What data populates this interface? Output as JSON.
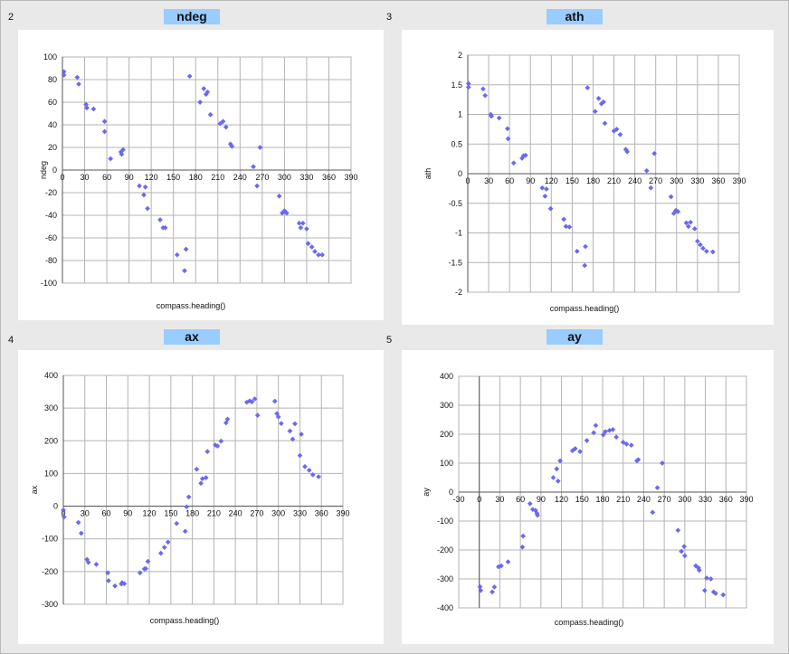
{
  "chart_data": [
    {
      "type": "scatter",
      "number": "2",
      "title": "ndeg",
      "xlabel": "compass.heading()",
      "ylabel": "ndeg",
      "xlim": [
        0,
        390
      ],
      "ylim": [
        -100,
        100
      ],
      "xticks": [
        "0",
        "30",
        "60",
        "90",
        "120",
        "150",
        "180",
        "210",
        "240",
        "270",
        "300",
        "330",
        "360",
        "390"
      ],
      "yticks": [
        "100",
        "80",
        "60",
        "40",
        "20",
        "0",
        "-20",
        "-40",
        "-60",
        "-80",
        "-100"
      ],
      "grid": true,
      "legend": "none",
      "color": "#6a6aee",
      "points": [
        [
          2,
          87
        ],
        [
          2,
          84
        ],
        [
          20,
          82
        ],
        [
          22,
          76
        ],
        [
          32,
          58
        ],
        [
          33,
          55
        ],
        [
          42,
          54
        ],
        [
          57,
          43
        ],
        [
          57,
          34
        ],
        [
          65,
          10
        ],
        [
          79,
          16
        ],
        [
          80,
          14
        ],
        [
          82,
          18
        ],
        [
          104,
          -14
        ],
        [
          110,
          -22
        ],
        [
          112,
          -15
        ],
        [
          115,
          -34
        ],
        [
          132,
          -44
        ],
        [
          136,
          -51
        ],
        [
          139,
          -51
        ],
        [
          155,
          -75
        ],
        [
          165,
          -89
        ],
        [
          167,
          -70
        ],
        [
          172,
          83
        ],
        [
          186,
          60
        ],
        [
          191,
          72
        ],
        [
          194,
          67
        ],
        [
          196,
          69
        ],
        [
          200,
          49
        ],
        [
          213,
          41
        ],
        [
          217,
          43
        ],
        [
          221,
          38
        ],
        [
          227,
          23
        ],
        [
          229,
          21
        ],
        [
          258,
          3
        ],
        [
          263,
          -14
        ],
        [
          267,
          20
        ],
        [
          293,
          -23
        ],
        [
          297,
          -38
        ],
        [
          300,
          -36
        ],
        [
          303,
          -38
        ],
        [
          320,
          -47
        ],
        [
          322,
          -51
        ],
        [
          325,
          -47
        ],
        [
          330,
          -52
        ],
        [
          332,
          -65
        ],
        [
          337,
          -68
        ],
        [
          341,
          -72
        ],
        [
          346,
          -75
        ],
        [
          351,
          -75
        ]
      ]
    },
    {
      "type": "scatter",
      "number": "3",
      "title": "ath",
      "xlabel": "compass.heading()",
      "ylabel": "ath",
      "xlim": [
        0,
        390
      ],
      "ylim": [
        -2,
        2
      ],
      "xticks": [
        "0",
        "30",
        "60",
        "90",
        "120",
        "150",
        "180",
        "210",
        "240",
        "270",
        "300",
        "330",
        "360",
        "390"
      ],
      "yticks": [
        "2",
        "1.5",
        "1",
        "0.5",
        "0",
        "-0.5",
        "-1",
        "-1.5",
        "-2"
      ],
      "grid": true,
      "legend": "none",
      "color": "#6a6aee",
      "points": [
        [
          1,
          1.52
        ],
        [
          1,
          1.46
        ],
        [
          22,
          1.43
        ],
        [
          25,
          1.32
        ],
        [
          33,
          1.0
        ],
        [
          34,
          0.97
        ],
        [
          45,
          0.94
        ],
        [
          57,
          0.76
        ],
        [
          58,
          0.59
        ],
        [
          66,
          0.18
        ],
        [
          78,
          0.26
        ],
        [
          80,
          0.3
        ],
        [
          83,
          0.31
        ],
        [
          107,
          -0.24
        ],
        [
          111,
          -0.38
        ],
        [
          113,
          -0.26
        ],
        [
          119,
          -0.59
        ],
        [
          138,
          -0.77
        ],
        [
          141,
          -0.89
        ],
        [
          146,
          -0.9
        ],
        [
          157,
          -1.31
        ],
        [
          168,
          -1.55
        ],
        [
          169,
          -1.23
        ],
        [
          172,
          1.45
        ],
        [
          183,
          1.05
        ],
        [
          188,
          1.27
        ],
        [
          192,
          1.18
        ],
        [
          195,
          1.21
        ],
        [
          197,
          0.85
        ],
        [
          210,
          0.72
        ],
        [
          214,
          0.75
        ],
        [
          219,
          0.66
        ],
        [
          227,
          0.41
        ],
        [
          229,
          0.37
        ],
        [
          257,
          0.05
        ],
        [
          263,
          -0.24
        ],
        [
          268,
          0.34
        ],
        [
          292,
          -0.39
        ],
        [
          296,
          -0.67
        ],
        [
          299,
          -0.62
        ],
        [
          302,
          -0.64
        ],
        [
          314,
          -0.83
        ],
        [
          317,
          -0.89
        ],
        [
          320,
          -0.82
        ],
        [
          326,
          -0.93
        ],
        [
          330,
          -1.14
        ],
        [
          334,
          -1.2
        ],
        [
          338,
          -1.26
        ],
        [
          343,
          -1.31
        ],
        [
          352,
          -1.32
        ]
      ]
    },
    {
      "type": "scatter",
      "number": "4",
      "title": "ax",
      "xlabel": "compass.heading()",
      "ylabel": "ax",
      "xlim": [
        0,
        390
      ],
      "ylim": [
        -300,
        400
      ],
      "xticks": [
        "0",
        "30",
        "60",
        "90",
        "120",
        "150",
        "180",
        "210",
        "240",
        "270",
        "300",
        "330",
        "360",
        "390"
      ],
      "yticks": [
        "400",
        "300",
        "200",
        "100",
        "0",
        "-100",
        "-200",
        "-300"
      ],
      "grid": true,
      "legend": "none",
      "color": "#6a6aee",
      "points": [
        [
          0,
          -12
        ],
        [
          1,
          -33
        ],
        [
          21,
          -50
        ],
        [
          25,
          -83
        ],
        [
          33,
          -163
        ],
        [
          35,
          -172
        ],
        [
          46,
          -178
        ],
        [
          62,
          -204
        ],
        [
          63,
          -228
        ],
        [
          72,
          -244
        ],
        [
          81,
          -238
        ],
        [
          82,
          -234
        ],
        [
          85,
          -237
        ],
        [
          107,
          -204
        ],
        [
          113,
          -192
        ],
        [
          115,
          -191
        ],
        [
          118,
          -169
        ],
        [
          136,
          -144
        ],
        [
          141,
          -126
        ],
        [
          146,
          -110
        ],
        [
          158,
          -53
        ],
        [
          170,
          -77
        ],
        [
          172,
          -2
        ],
        [
          175,
          28
        ],
        [
          186,
          113
        ],
        [
          192,
          70
        ],
        [
          194,
          84
        ],
        [
          199,
          87
        ],
        [
          201,
          167
        ],
        [
          212,
          187
        ],
        [
          215,
          184
        ],
        [
          220,
          199
        ],
        [
          227,
          255
        ],
        [
          229,
          266
        ],
        [
          256,
          318
        ],
        [
          260,
          322
        ],
        [
          263,
          319
        ],
        [
          267,
          328
        ],
        [
          271,
          278
        ],
        [
          295,
          321
        ],
        [
          298,
          283
        ],
        [
          300,
          273
        ],
        [
          304,
          253
        ],
        [
          316,
          230
        ],
        [
          320,
          205
        ],
        [
          323,
          252
        ],
        [
          330,
          155
        ],
        [
          332,
          220
        ],
        [
          337,
          121
        ],
        [
          343,
          110
        ],
        [
          348,
          96
        ],
        [
          356,
          90
        ]
      ]
    },
    {
      "type": "scatter",
      "number": "5",
      "title": "ay",
      "xlabel": "compass.heading()",
      "ylabel": "ay",
      "xlim": [
        -30,
        390
      ],
      "ylim": [
        -400,
        400
      ],
      "xticks": [
        "-30",
        "0",
        "30",
        "60",
        "90",
        "120",
        "150",
        "180",
        "210",
        "240",
        "270",
        "300",
        "330",
        "360",
        "390"
      ],
      "yticks": [
        "400",
        "300",
        "200",
        "100",
        "0",
        "-100",
        "-200",
        "-300",
        "-400"
      ],
      "grid": true,
      "legend": "none",
      "color": "#6a6aee",
      "points": [
        [
          1,
          -327
        ],
        [
          2,
          -340
        ],
        [
          19,
          -345
        ],
        [
          22,
          -328
        ],
        [
          28,
          -258
        ],
        [
          32,
          -255
        ],
        [
          42,
          -241
        ],
        [
          63,
          -190
        ],
        [
          64,
          -152
        ],
        [
          74,
          -40
        ],
        [
          78,
          -60
        ],
        [
          82,
          -63
        ],
        [
          84,
          -73
        ],
        [
          85,
          -80
        ],
        [
          108,
          50
        ],
        [
          113,
          80
        ],
        [
          115,
          38
        ],
        [
          118,
          108
        ],
        [
          136,
          143
        ],
        [
          140,
          150
        ],
        [
          147,
          140
        ],
        [
          157,
          178
        ],
        [
          167,
          205
        ],
        [
          170,
          230
        ],
        [
          181,
          198
        ],
        [
          184,
          209
        ],
        [
          190,
          213
        ],
        [
          195,
          216
        ],
        [
          200,
          190
        ],
        [
          210,
          172
        ],
        [
          215,
          166
        ],
        [
          222,
          162
        ],
        [
          230,
          108
        ],
        [
          232,
          112
        ],
        [
          253,
          -70
        ],
        [
          260,
          15
        ],
        [
          267,
          100
        ],
        [
          290,
          -132
        ],
        [
          295,
          -205
        ],
        [
          299,
          -188
        ],
        [
          300,
          -220
        ],
        [
          316,
          -255
        ],
        [
          320,
          -262
        ],
        [
          321,
          -270
        ],
        [
          329,
          -340
        ],
        [
          332,
          -297
        ],
        [
          338,
          -300
        ],
        [
          342,
          -345
        ],
        [
          345,
          -350
        ],
        [
          356,
          -355
        ]
      ]
    }
  ]
}
